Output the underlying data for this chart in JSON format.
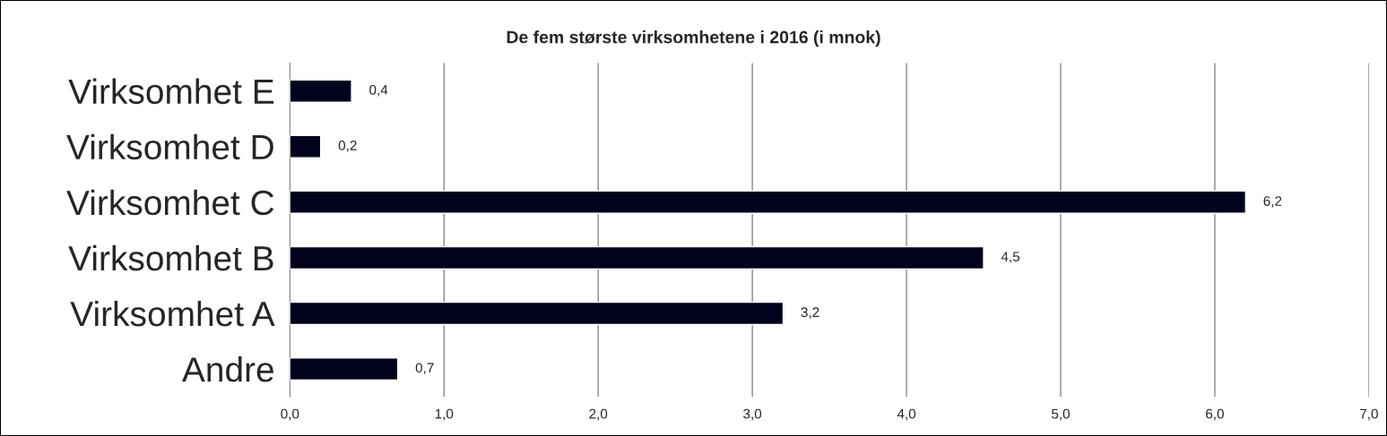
{
  "chart_data": {
    "type": "bar",
    "orientation": "horizontal",
    "title": "De fem største virksomhetene i 2016 (i mnok)",
    "categories": [
      "Virksomhet E",
      "Virksomhet D",
      "Virksomhet C",
      "Virksomhet B",
      "Virksomhet A",
      "Andre"
    ],
    "values": [
      0.4,
      0.2,
      6.2,
      4.5,
      3.2,
      0.7
    ],
    "value_labels": [
      "0,4",
      "0,2",
      "6,2",
      "4,5",
      "3,2",
      "0,7"
    ],
    "color": "#03031e",
    "xlim": [
      0,
      7
    ],
    "xticks": [
      {
        "value": 0,
        "label": "0,0"
      },
      {
        "value": 1,
        "label": "1,0"
      },
      {
        "value": 2,
        "label": "2,0"
      },
      {
        "value": 3,
        "label": "3,0"
      },
      {
        "value": 4,
        "label": "4,0"
      },
      {
        "value": 5,
        "label": "5,0"
      },
      {
        "value": 6,
        "label": "6,0"
      },
      {
        "value": 7,
        "label": "7,0"
      }
    ],
    "grid": "x",
    "legend": false
  }
}
